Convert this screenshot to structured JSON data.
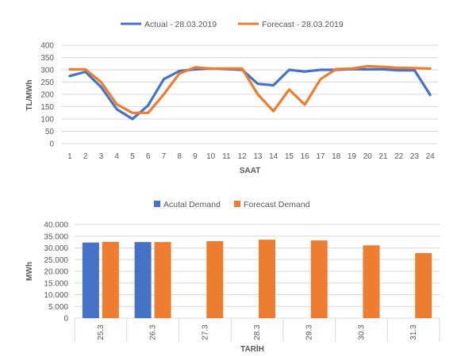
{
  "chart_data": [
    {
      "type": "line",
      "title": "",
      "xlabel": "SAAT",
      "ylabel": "TL/MWh",
      "ylim": [
        0,
        400
      ],
      "yticks": [
        "0",
        "50",
        "100",
        "150",
        "200",
        "250",
        "300",
        "350",
        "400"
      ],
      "categories": [
        "1",
        "2",
        "3",
        "4",
        "5",
        "6",
        "7",
        "8",
        "9",
        "10",
        "11",
        "12",
        "13",
        "14",
        "15",
        "16",
        "17",
        "18",
        "19",
        "20",
        "21",
        "22",
        "23",
        "24"
      ],
      "legend_position": "top",
      "grid": true,
      "series": [
        {
          "name": "Actual - 28.03.2019",
          "color": "#4472C4",
          "values": [
            275,
            292,
            230,
            140,
            100,
            155,
            262,
            295,
            302,
            305,
            303,
            300,
            243,
            237,
            300,
            293,
            300,
            300,
            303,
            302,
            302,
            298,
            298,
            198
          ]
        },
        {
          "name": "Forecast - 28.03.2019",
          "color": "#ED7D31",
          "values": [
            302,
            302,
            250,
            160,
            125,
            125,
            200,
            285,
            310,
            305,
            305,
            305,
            200,
            132,
            220,
            158,
            262,
            303,
            305,
            315,
            312,
            308,
            307,
            305
          ]
        }
      ]
    },
    {
      "type": "bar",
      "title": "",
      "xlabel": "TARİH",
      "ylabel": "MWh",
      "ylim": [
        0,
        40000
      ],
      "yticks": [
        "0",
        "5.000",
        "10.000",
        "15.000",
        "20.000",
        "25.000",
        "30.000",
        "35.000",
        "40.000"
      ],
      "categories": [
        "25.3",
        "26.3",
        "27.3",
        "28.3",
        "29.3",
        "30.3",
        "31.3"
      ],
      "legend_position": "top",
      "grid": true,
      "series": [
        {
          "name": "Acutal Demand",
          "color": "#4472C4",
          "values": [
            32300,
            32500,
            null,
            null,
            null,
            null,
            null
          ]
        },
        {
          "name": "Forecast Demand",
          "color": "#ED7D31",
          "values": [
            32600,
            32500,
            32900,
            33500,
            33200,
            31100,
            27800
          ]
        }
      ]
    }
  ]
}
